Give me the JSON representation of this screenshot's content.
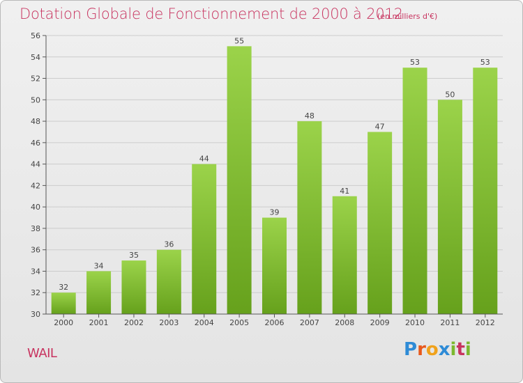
{
  "chart_data": {
    "type": "bar",
    "title": "Dotation Globale de Fonctionnement de 2000 à 2012",
    "subtitle": "(en milliers d'€)",
    "categories": [
      "2000",
      "2001",
      "2002",
      "2003",
      "2004",
      "2005",
      "2006",
      "2007",
      "2008",
      "2009",
      "2010",
      "2011",
      "2012"
    ],
    "values": [
      32,
      34,
      35,
      36,
      44,
      55,
      39,
      48,
      41,
      47,
      53,
      50,
      53
    ],
    "ylim": [
      30,
      56
    ],
    "yticks": [
      30,
      32,
      34,
      36,
      38,
      40,
      42,
      44,
      46,
      48,
      50,
      52,
      54,
      56
    ],
    "grid": true,
    "bar_color": "#7fbb2a"
  },
  "location_label": "WAIL",
  "logo": {
    "text": "Proxiti",
    "letters": [
      "P",
      "r",
      "o",
      "x",
      "i",
      "t",
      "i"
    ],
    "colors": [
      "#2e8bd6",
      "#e8591c",
      "#f0a21c",
      "#2e8bd6",
      "#7cb82f",
      "#c8335f",
      "#7cb82f"
    ]
  },
  "colors": {
    "title": "#c8335f",
    "axis": "#555555",
    "gridline": "#cccccc"
  }
}
